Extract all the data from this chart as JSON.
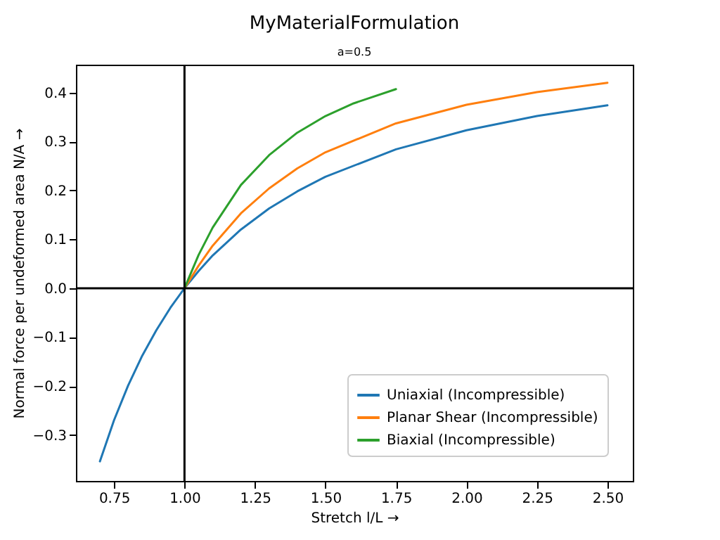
{
  "chart_data": {
    "type": "line",
    "title": "MyMaterialFormulation",
    "subtitle": "a=0.5",
    "xlabel": "Stretch l/L  →",
    "ylabel": "Normal force per undeformed area N/A  →",
    "series": [
      {
        "name": "Uniaxial (Incompressible)",
        "color": "#1f77b4",
        "x": [
          0.7,
          0.75,
          0.8,
          0.85,
          0.9,
          0.95,
          1.0,
          1.05,
          1.1,
          1.2,
          1.3,
          1.4,
          1.5,
          1.75,
          2.0,
          2.25,
          2.5
        ],
        "values": [
          -0.354,
          -0.27,
          -0.199,
          -0.138,
          -0.086,
          -0.04,
          0,
          0.035,
          0.067,
          0.12,
          0.163,
          0.198,
          0.228,
          0.284,
          0.323,
          0.352,
          0.374
        ]
      },
      {
        "name": "Planar Shear (Incompressible)",
        "color": "#ff7f0e",
        "x": [
          1.0,
          1.05,
          1.1,
          1.2,
          1.3,
          1.4,
          1.5,
          1.75,
          2.0,
          2.25,
          2.5
        ],
        "values": [
          0,
          0.046,
          0.087,
          0.153,
          0.204,
          0.245,
          0.278,
          0.337,
          0.375,
          0.401,
          0.42
        ]
      },
      {
        "name": "Biaxial (Incompressible)",
        "color": "#2ca02c",
        "x": [
          1.0,
          1.05,
          1.1,
          1.2,
          1.3,
          1.4,
          1.5,
          1.6,
          1.75
        ],
        "values": [
          0,
          0.068,
          0.124,
          0.211,
          0.272,
          0.318,
          0.352,
          0.378,
          0.407
        ]
      }
    ],
    "xlim": [
      0.615,
      2.59
    ],
    "ylim": [
      -0.394,
      0.457
    ],
    "xticks": [
      {
        "value": 0.75,
        "label": "0.75"
      },
      {
        "value": 1,
        "label": "1.00"
      },
      {
        "value": 1.25,
        "label": "1.25"
      },
      {
        "value": 1.5,
        "label": "1.50"
      },
      {
        "value": 1.75,
        "label": "1.75"
      },
      {
        "value": 2,
        "label": "2.00"
      },
      {
        "value": 2.25,
        "label": "2.25"
      },
      {
        "value": 2.5,
        "label": "2.50"
      }
    ],
    "yticks": [
      {
        "value": -0.3,
        "label": "−0.3"
      },
      {
        "value": -0.2,
        "label": "−0.2"
      },
      {
        "value": -0.1,
        "label": "−0.1"
      },
      {
        "value": 0,
        "label": "0.0"
      },
      {
        "value": 0.1,
        "label": "0.1"
      },
      {
        "value": 0.2,
        "label": "0.2"
      },
      {
        "value": 0.3,
        "label": "0.3"
      },
      {
        "value": 0.4,
        "label": "0.4"
      }
    ],
    "ref_lines": [
      {
        "axis": "x",
        "value": 1,
        "color": "#000000"
      },
      {
        "axis": "y",
        "value": 0,
        "color": "#000000"
      }
    ],
    "legend": "bottom right",
    "grid": false
  }
}
